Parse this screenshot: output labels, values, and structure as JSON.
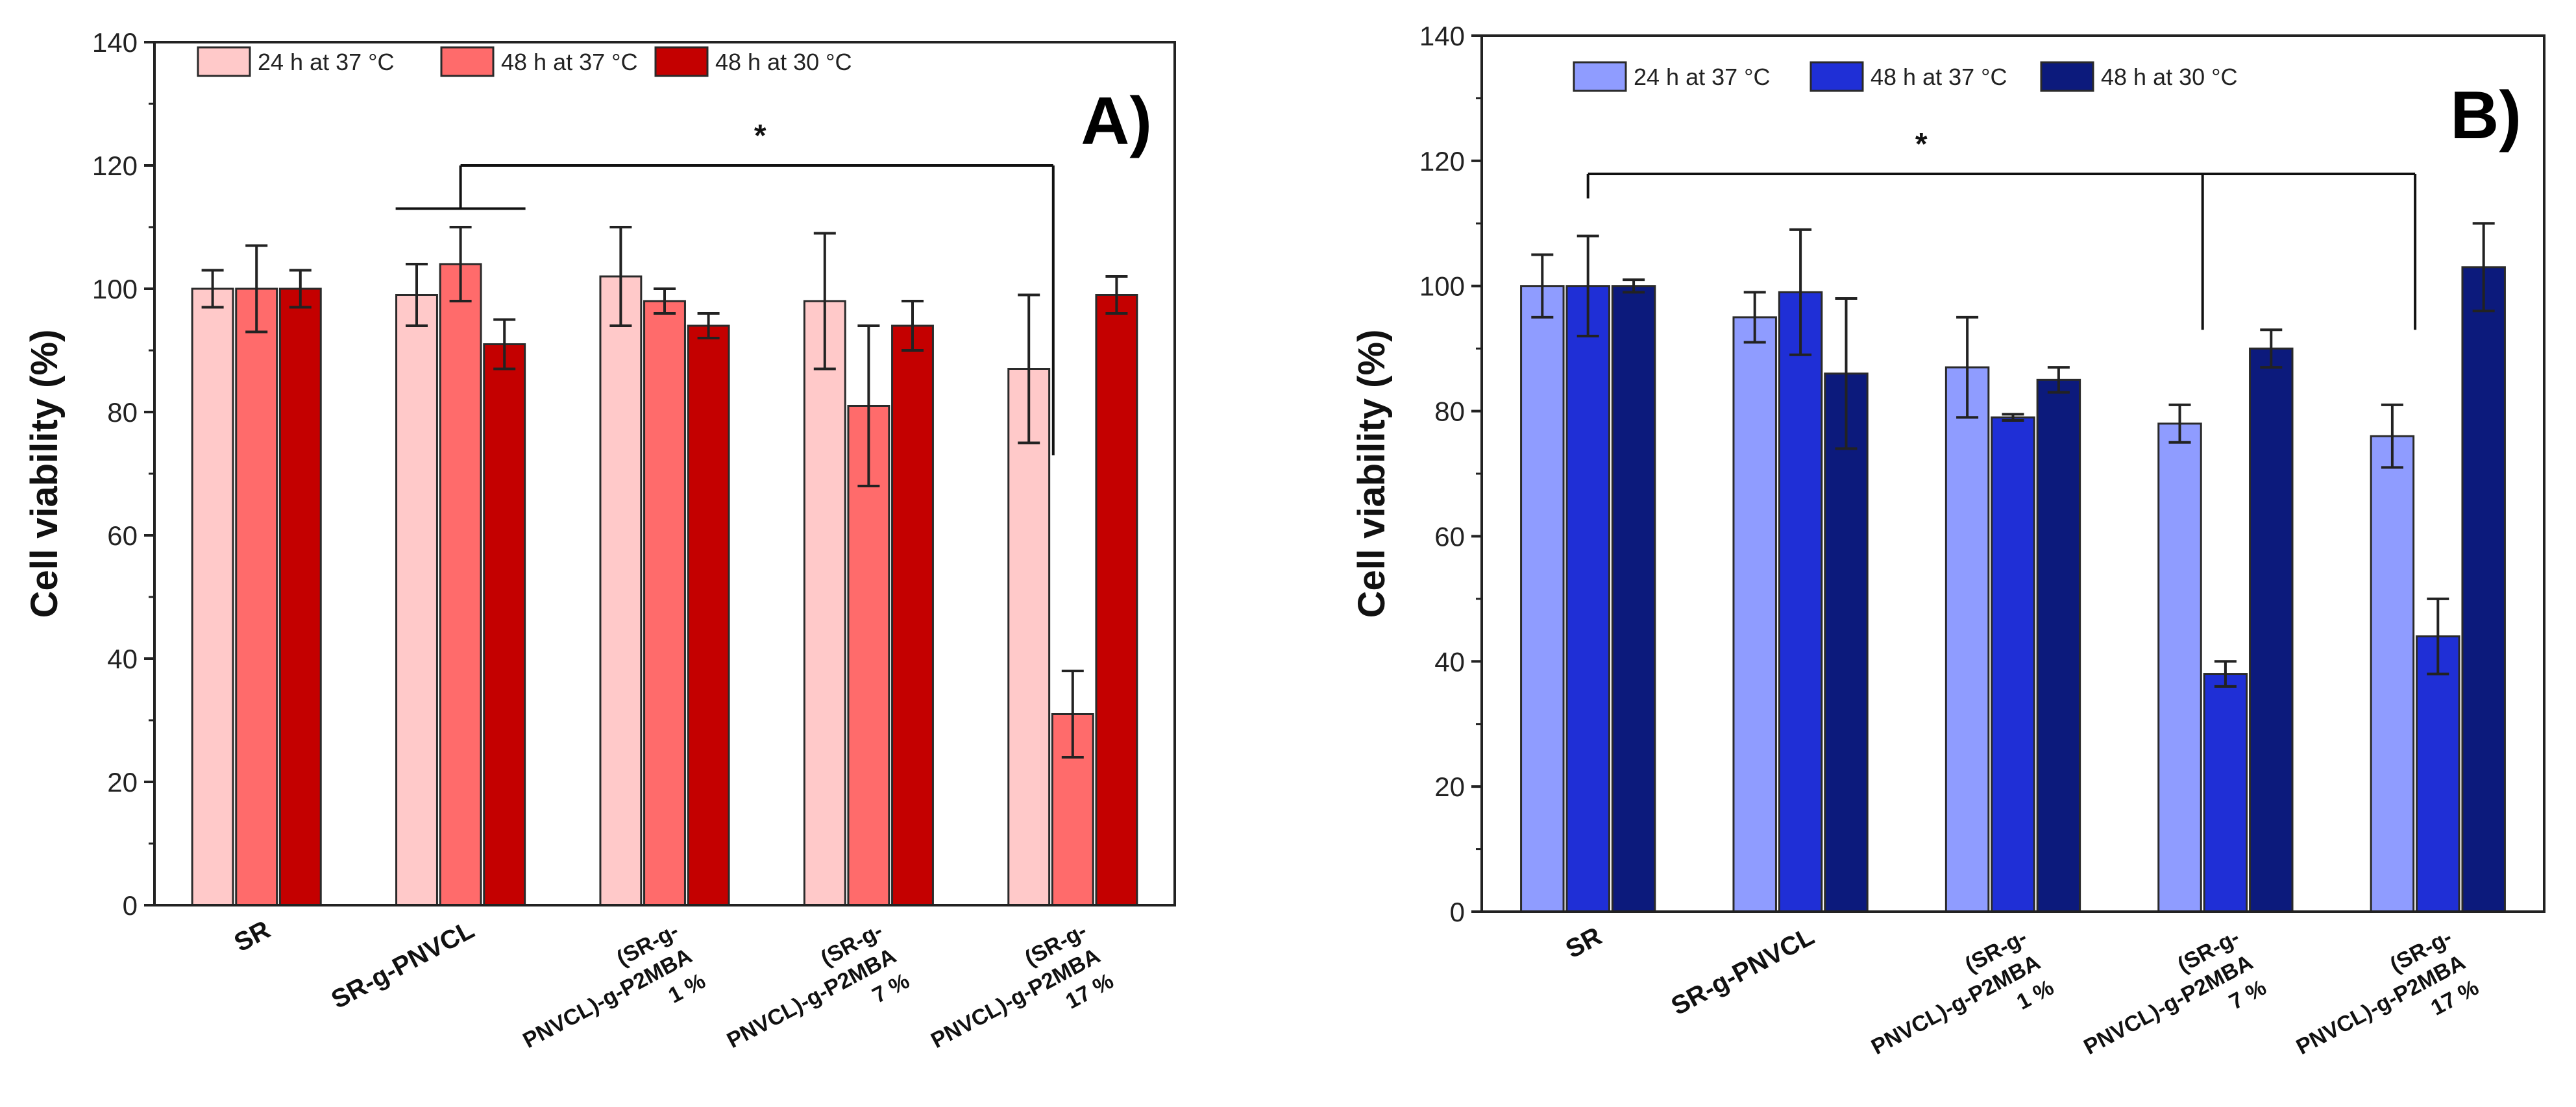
{
  "chart_data": [
    {
      "type": "bar",
      "panel_label": "A)",
      "ylabel": "Cell viability (%)",
      "ylim": [
        0,
        140
      ],
      "yticks": [
        0,
        20,
        40,
        60,
        80,
        100,
        120,
        140
      ],
      "categories": [
        {
          "lines": [
            "SR"
          ],
          "style": "bold"
        },
        {
          "lines": [
            "SR-g-PNVCL"
          ],
          "style": "bold"
        },
        {
          "lines": [
            "(SR-g-",
            "PNVCL)-g-P2MBA",
            "1 %"
          ],
          "style": "small"
        },
        {
          "lines": [
            "(SR-g-",
            "PNVCL)-g-P2MBA",
            "7 %"
          ],
          "style": "small"
        },
        {
          "lines": [
            "(SR-g-",
            "PNVCL)-g-P2MBA",
            "17 %"
          ],
          "style": "small"
        }
      ],
      "series": [
        {
          "name": "24 h at 37 °C",
          "color": "#ffc9c9",
          "values": [
            100,
            99,
            102,
            98,
            87
          ],
          "errors": [
            3,
            5,
            8,
            11,
            12
          ]
        },
        {
          "name": "48 h at 37 °C",
          "color": "#ff6b6b",
          "values": [
            100,
            104,
            98,
            81,
            31
          ],
          "errors": [
            7,
            6,
            2,
            13,
            7
          ]
        },
        {
          "name": "48 h at 30 °C",
          "color": "#c40000",
          "values": [
            100,
            91,
            94,
            94,
            99
          ],
          "errors": [
            3,
            4,
            2,
            4,
            3
          ]
        }
      ],
      "significance": [
        {
          "label": "*",
          "from_category": 1,
          "to_category": 4
        }
      ]
    },
    {
      "type": "bar",
      "panel_label": "B)",
      "ylabel": "Cell viability (%)",
      "ylim": [
        0,
        140
      ],
      "yticks": [
        0,
        20,
        40,
        60,
        80,
        100,
        120,
        140
      ],
      "categories": [
        {
          "lines": [
            "SR"
          ],
          "style": "bold"
        },
        {
          "lines": [
            "SR-g-PNVCL"
          ],
          "style": "bold"
        },
        {
          "lines": [
            "(SR-g-",
            "PNVCL)-g-P2MBA",
            "1 %"
          ],
          "style": "small"
        },
        {
          "lines": [
            "(SR-g-",
            "PNVCL)-g-P2MBA",
            "7 %"
          ],
          "style": "small"
        },
        {
          "lines": [
            "(SR-g-",
            "PNVCL)-g-P2MBA",
            "17 %"
          ],
          "style": "small"
        }
      ],
      "series": [
        {
          "name": "24 h at 37 °C",
          "color": "#8f9cff",
          "values": [
            100,
            95,
            87,
            78,
            76
          ],
          "errors": [
            5,
            4,
            8,
            3,
            5
          ]
        },
        {
          "name": "48 h at 37 °C",
          "color": "#1f2fd6",
          "values": [
            100,
            99,
            79,
            38,
            44
          ],
          "errors": [
            8,
            10,
            0.5,
            2,
            6
          ]
        },
        {
          "name": "48 h at 30 °C",
          "color": "#0c1a7c",
          "values": [
            100,
            86,
            85,
            90,
            103
          ],
          "errors": [
            1,
            12,
            2,
            3,
            7
          ]
        }
      ],
      "significance": [
        {
          "label": "*",
          "from_category": 0,
          "to_category": [
            3,
            4
          ]
        }
      ]
    }
  ]
}
